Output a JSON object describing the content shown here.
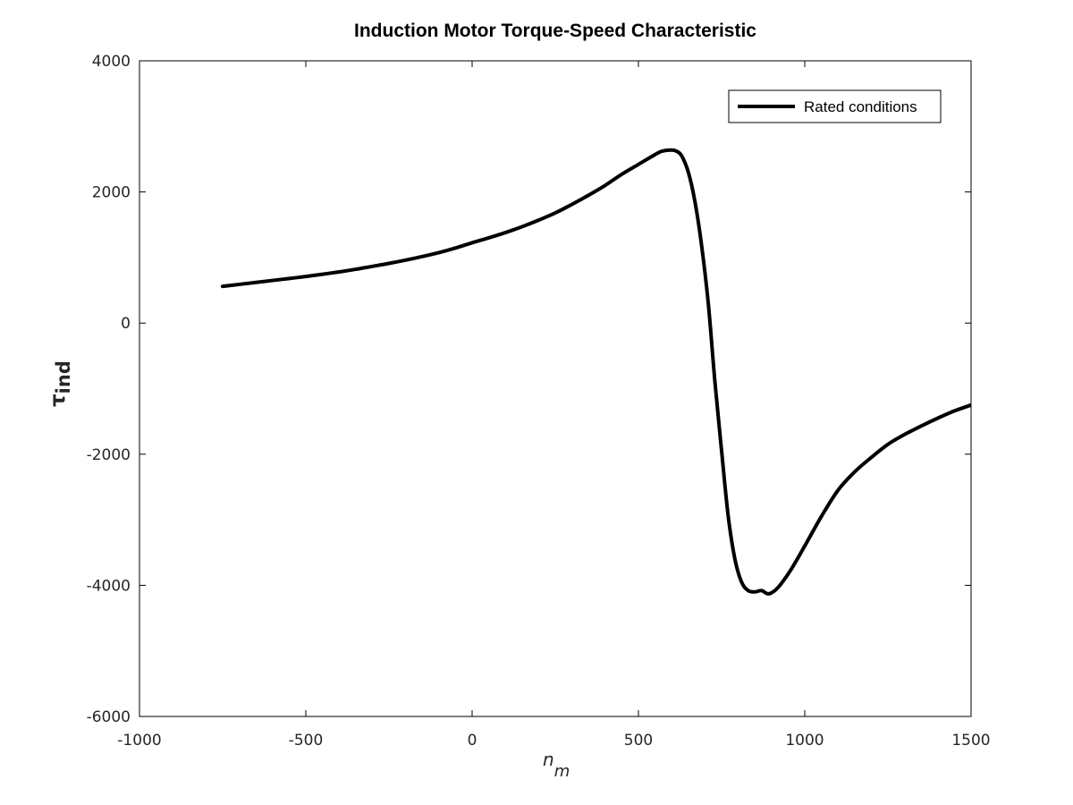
{
  "chart_data": {
    "type": "line",
    "title": "Induction Motor Torque-Speed Characteristic",
    "xlabel": {
      "main": "n",
      "sub": "m"
    },
    "ylabel": {
      "main": "τ",
      "sub": "ind"
    },
    "xlim": [
      -1000,
      1500
    ],
    "ylim": [
      -6000,
      4000
    ],
    "xticks": [
      -1000,
      -500,
      0,
      500,
      1000,
      1500
    ],
    "yticks": [
      -6000,
      -4000,
      -2000,
      0,
      2000,
      4000
    ],
    "xtick_labels": [
      "-1000",
      "-500",
      "0",
      "500",
      "1000",
      "1500"
    ],
    "ytick_labels": [
      "-6000",
      "-4000",
      "-2000",
      "0",
      "2000",
      "4000"
    ],
    "grid": false,
    "legend": {
      "position": "top-right",
      "entries": [
        "Rated conditions"
      ]
    },
    "series": [
      {
        "name": "Rated conditions",
        "color": "#000000",
        "x": [
          -750,
          -700,
          -650,
          -600,
          -550,
          -500,
          -450,
          -400,
          -350,
          -300,
          -250,
          -200,
          -150,
          -100,
          -50,
          0,
          50,
          100,
          150,
          200,
          250,
          300,
          350,
          400,
          450,
          500,
          540,
          570,
          600,
          615,
          630,
          650,
          670,
          690,
          710,
          730,
          750,
          770,
          790,
          810,
          830,
          850,
          870,
          890,
          910,
          930,
          960,
          1000,
          1050,
          1100,
          1150,
          1200,
          1250,
          1300,
          1350,
          1400,
          1450,
          1500
        ],
        "y": [
          560,
          590,
          620,
          650,
          680,
          710,
          745,
          780,
          820,
          865,
          910,
          960,
          1015,
          1075,
          1145,
          1225,
          1300,
          1380,
          1470,
          1570,
          1680,
          1810,
          1950,
          2100,
          2270,
          2420,
          2540,
          2620,
          2640,
          2620,
          2550,
          2300,
          1850,
          1180,
          300,
          -900,
          -1950,
          -2950,
          -3600,
          -3950,
          -4080,
          -4100,
          -4080,
          -4130,
          -4080,
          -3970,
          -3750,
          -3400,
          -2950,
          -2550,
          -2270,
          -2050,
          -1850,
          -1700,
          -1570,
          -1450,
          -1340,
          -1250
        ]
      }
    ]
  }
}
